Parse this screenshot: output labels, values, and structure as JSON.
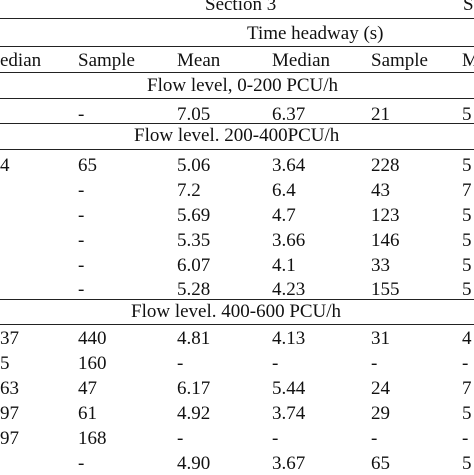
{
  "table": {
    "section_title": "Section 3",
    "section_title_next_partial": "S",
    "time_headway_label": "Time headway (s)",
    "header_row": {
      "col0": "edian",
      "col1": "Sample",
      "col2": "Mean",
      "col3": "Median",
      "col4": "Sample",
      "col5": "M"
    },
    "group_titles": [
      "Flow level, 0-200 PCU/h",
      "Flow level. 200-400PCU/h",
      "Flow level. 400-600 PCU/h"
    ],
    "rows": [
      {
        "c0": "",
        "c1": "-",
        "c2": "7.05",
        "c3": "6.37",
        "c4": "21",
        "c5": "5"
      },
      {
        "c0": "4",
        "c1": "65",
        "c2": "5.06",
        "c3": "3.64",
        "c4": "228",
        "c5": "5"
      },
      {
        "c0": "",
        "c1": "-",
        "c2": "7.2",
        "c3": "6.4",
        "c4": "43",
        "c5": "7"
      },
      {
        "c0": "",
        "c1": "-",
        "c2": "5.69",
        "c3": "4.7",
        "c4": "123",
        "c5": "5"
      },
      {
        "c0": "",
        "c1": "-",
        "c2": "5.35",
        "c3": "3.66",
        "c4": "146",
        "c5": "5"
      },
      {
        "c0": "",
        "c1": "-",
        "c2": "6.07",
        "c3": "4.1",
        "c4": "33",
        "c5": "5"
      },
      {
        "c0": "",
        "c1": "-",
        "c2": "5.28",
        "c3": "4.23",
        "c4": "155",
        "c5": "5"
      },
      {
        "c0": "37",
        "c1": "440",
        "c2": "4.81",
        "c3": "4.13",
        "c4": "31",
        "c5": "4"
      },
      {
        "c0": "5",
        "c1": "160",
        "c2": "-",
        "c3": "-",
        "c4": "-",
        "c5": "-"
      },
      {
        "c0": "63",
        "c1": "47",
        "c2": "6.17",
        "c3": "5.44",
        "c4": "24",
        "c5": "7"
      },
      {
        "c0": "97",
        "c1": "61",
        "c2": "4.92",
        "c3": "3.74",
        "c4": "29",
        "c5": "5"
      },
      {
        "c0": "97",
        "c1": "168",
        "c2": "-",
        "c3": "-",
        "c4": "-",
        "c5": "-"
      },
      {
        "c0": "",
        "c1": "-",
        "c2": "4.90",
        "c3": "3.67",
        "c4": "65",
        "c5": "5"
      }
    ]
  }
}
